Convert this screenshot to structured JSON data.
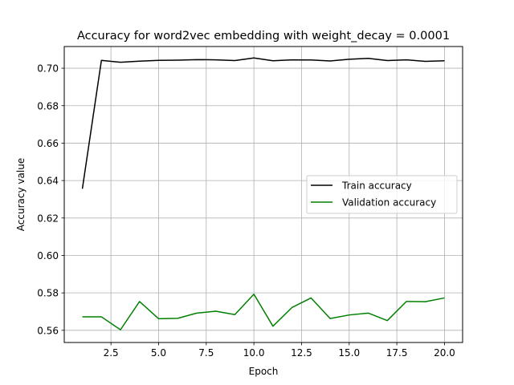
{
  "chart_data": {
    "type": "line",
    "title": "Accuracy for word2vec embedding with weight_decay = 0.0001",
    "xlabel": "Epoch",
    "ylabel": "Accuracy value",
    "xlim": [
      0.05,
      20.95
    ],
    "ylim": [
      0.5535,
      0.7116
    ],
    "xticks": [
      2.5,
      5.0,
      7.5,
      10.0,
      12.5,
      15.0,
      17.5,
      20.0
    ],
    "xtick_labels": [
      "2.5",
      "5.0",
      "7.5",
      "10.0",
      "12.5",
      "15.0",
      "17.5",
      "20.0"
    ],
    "yticks": [
      0.56,
      0.58,
      0.6,
      0.62,
      0.64,
      0.66,
      0.68,
      0.7
    ],
    "ytick_labels": [
      "0.56",
      "0.58",
      "0.60",
      "0.62",
      "0.64",
      "0.66",
      "0.68",
      "0.70"
    ],
    "grid": true,
    "legend_position": "center-right",
    "x": [
      1,
      2,
      3,
      4,
      5,
      6,
      7,
      8,
      9,
      10,
      11,
      12,
      13,
      14,
      15,
      16,
      17,
      18,
      19,
      20
    ],
    "series": [
      {
        "name": "Train accuracy",
        "color": "#000000",
        "values": [
          0.6356,
          0.7042,
          0.7032,
          0.7038,
          0.7042,
          0.7043,
          0.7046,
          0.7045,
          0.7041,
          0.7055,
          0.704,
          0.7045,
          0.7044,
          0.7039,
          0.7048,
          0.7053,
          0.7041,
          0.7045,
          0.7037,
          0.704
        ]
      },
      {
        "name": "Validation accuracy",
        "color": "#008000",
        "values": [
          0.5672,
          0.5672,
          0.5603,
          0.5754,
          0.5662,
          0.5664,
          0.5692,
          0.5702,
          0.5684,
          0.5793,
          0.5622,
          0.5722,
          0.5773,
          0.5663,
          0.5682,
          0.5692,
          0.5652,
          0.5754,
          0.5753,
          0.5773
        ]
      }
    ]
  }
}
